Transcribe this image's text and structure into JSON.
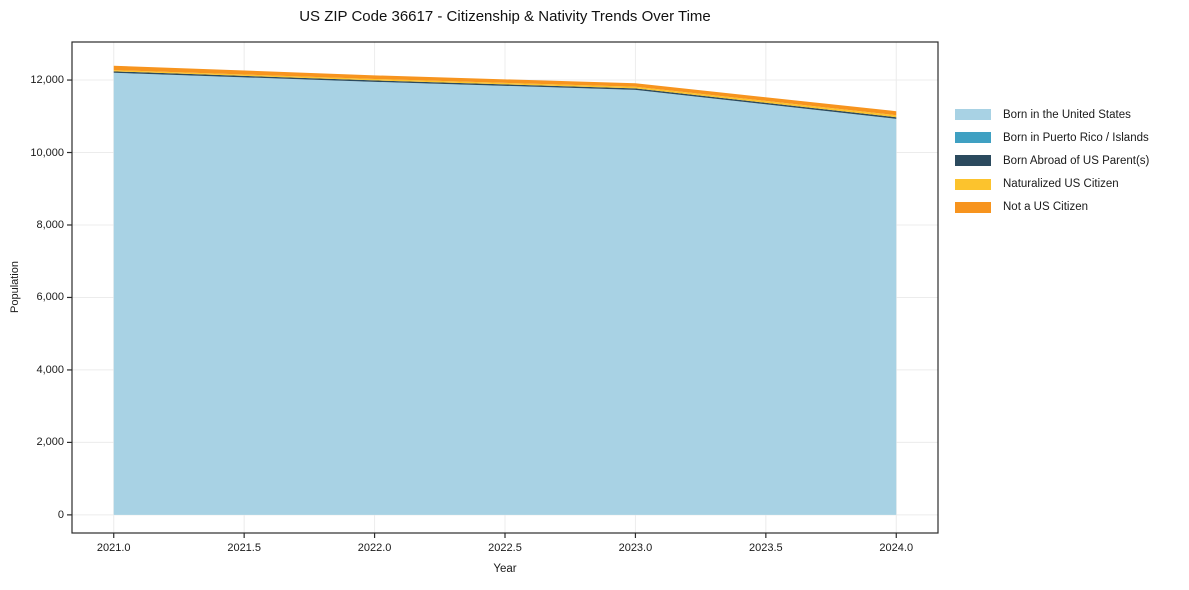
{
  "page": {
    "background": "#ffffff"
  },
  "chart_data": {
    "type": "area",
    "stacked": true,
    "title": "US ZIP Code 36617 - Citizenship & Nativity Trends Over Time",
    "xlabel": "Year",
    "ylabel": "Population",
    "x": [
      2021,
      2022,
      2023,
      2024
    ],
    "series": [
      {
        "name": "Born in the United States",
        "color": "#a8d2e4",
        "values": [
          12200,
          11950,
          11730,
          10930
        ]
      },
      {
        "name": "Born in Puerto Rico / Islands",
        "color": "#3fa0c2",
        "values": [
          0,
          0,
          0,
          0
        ]
      },
      {
        "name": "Born Abroad of US Parent(s)",
        "color": "#2b4a5e",
        "values": [
          40,
          40,
          40,
          45
        ]
      },
      {
        "name": "Naturalized US Citizen",
        "color": "#fcc32d",
        "values": [
          35,
          40,
          45,
          55
        ]
      },
      {
        "name": "Not a US Citizen",
        "color": "#f7941e",
        "values": [
          120,
          100,
          95,
          110
        ]
      }
    ],
    "xlim": [
      2020.84,
      2024.16
    ],
    "ylim": [
      -500,
      13050
    ],
    "xtick_values": [
      2021.0,
      2021.5,
      2022.0,
      2022.5,
      2023.0,
      2023.5,
      2024.0
    ],
    "xtick_labels": [
      "2021.0",
      "2021.5",
      "2022.0",
      "2022.5",
      "2023.0",
      "2023.5",
      "2024.0"
    ],
    "ytick_values": [
      0,
      2000,
      4000,
      6000,
      8000,
      10000,
      12000
    ],
    "ytick_labels": [
      "0",
      "2,000",
      "4,000",
      "6,000",
      "8,000",
      "10,000",
      "12,000"
    ],
    "grid": true,
    "legend_position": "right-outside",
    "colors": {
      "grid": "#ececec",
      "spine": "#2b2b2b",
      "text": "#1a1a1a",
      "background": "#ffffff"
    }
  }
}
